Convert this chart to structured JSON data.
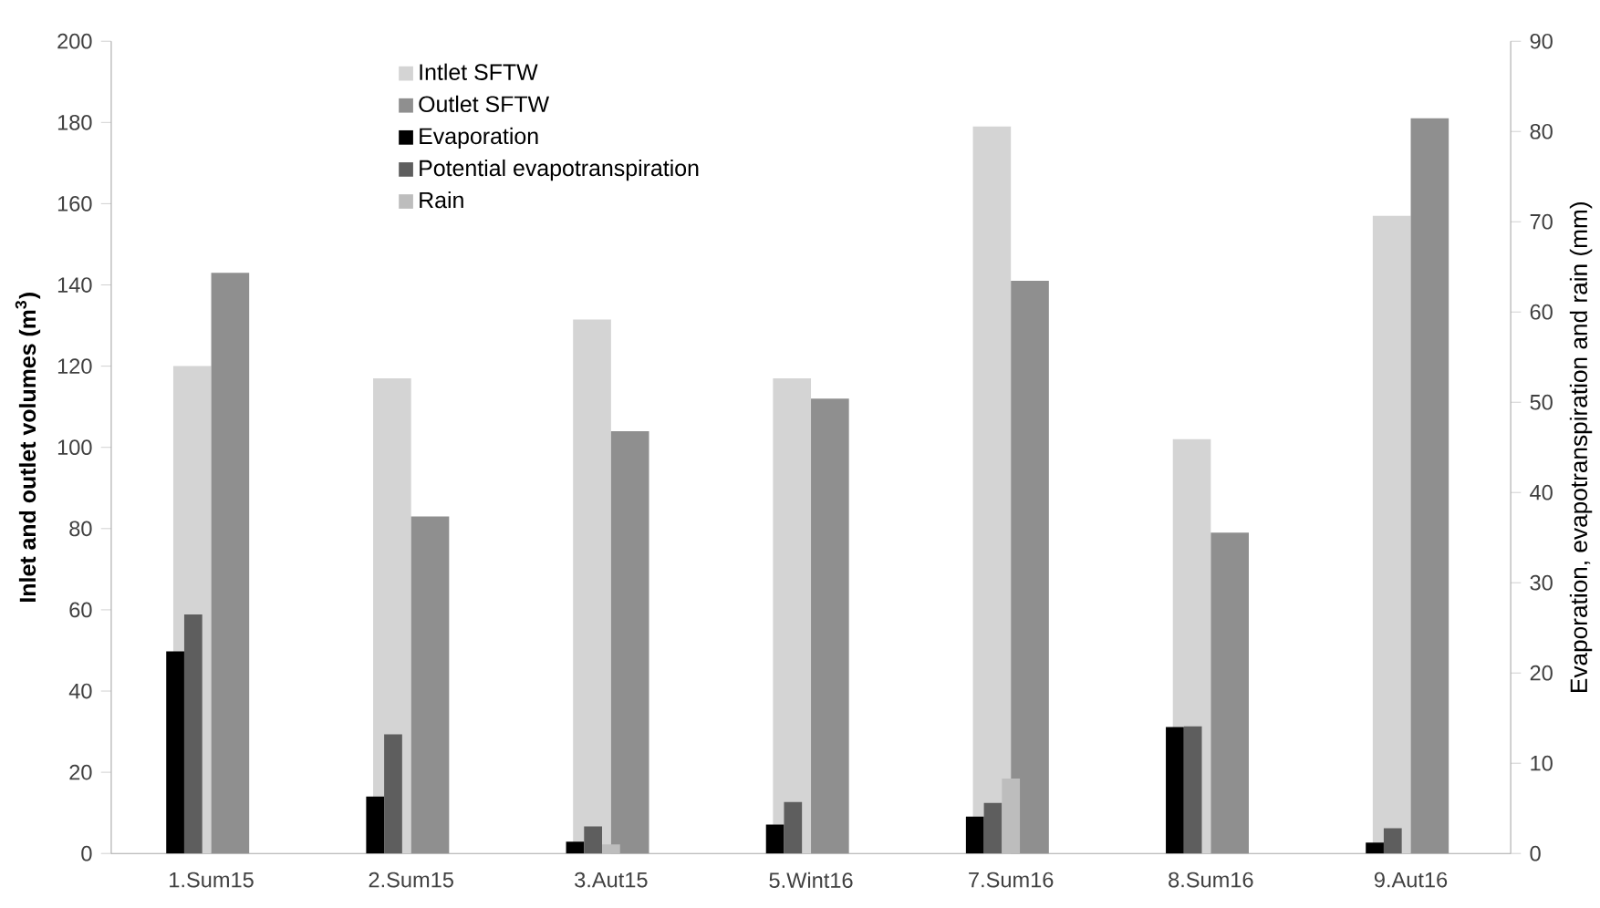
{
  "chart_data": {
    "type": "bar",
    "ylabel": "Inlet and outlet volumes (m$^{3}$)",
    "y2label": "Evaporation, evapotranspiration and rain (mm)",
    "categories": [
      "1.Sum15",
      "2.Sum15",
      "3.Aut15",
      "5.Wint16",
      "7.Sum16",
      "8.Sum16",
      "9.Aut16"
    ],
    "series": [
      {
        "name": "Intlet SFTW",
        "color": "#d4d4d4",
        "values": [
          120,
          117,
          131.5,
          117,
          179,
          102,
          157
        ]
      },
      {
        "name": "Outlet SFTW",
        "color": "#8f8f8f",
        "values": [
          143,
          83,
          104,
          112,
          141,
          79,
          181
        ]
      },
      {
        "name": "Evaporation",
        "color": "#000000",
        "axis": "y2",
        "values": [
          22.4,
          6.3,
          1.3,
          3.2,
          4.1,
          14,
          1.2
        ]
      },
      {
        "name": "Potential evapotranspiration",
        "color": "#5e5e5e",
        "axis": "y2",
        "values": [
          26.5,
          13.2,
          3,
          5.7,
          5.6,
          14.1,
          2.8
        ]
      },
      {
        "name": "Rain",
        "color": "#bdbdbd",
        "axis": "y2",
        "values": [
          0,
          0,
          1,
          0,
          8.3,
          0,
          0
        ]
      }
    ],
    "ylim": [
      0,
      200
    ],
    "yticks": [
      0,
      20,
      40,
      60,
      80,
      100,
      120,
      140,
      160,
      180,
      200
    ],
    "y2lim": [
      0,
      90
    ],
    "y2ticks": [
      0,
      10,
      20,
      30,
      40,
      50,
      60,
      70,
      80,
      90
    ],
    "grid": false,
    "legend": "top left"
  }
}
